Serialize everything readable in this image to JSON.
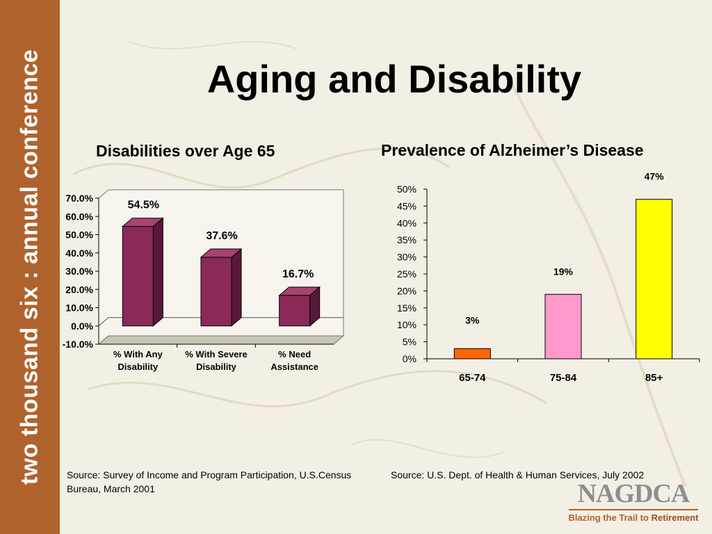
{
  "sidebar": {
    "text": "two thousand six : annual conference"
  },
  "title": "Aging and Disability",
  "chart_data": [
    {
      "type": "bar",
      "title": "Disabilities over Age 65",
      "categories": [
        [
          "% With Any",
          "Disability"
        ],
        [
          "% With Severe",
          "Disability"
        ],
        [
          "% Need",
          "Assistance"
        ]
      ],
      "values": [
        54.5,
        37.6,
        16.7
      ],
      "data_labels": [
        "54.5%",
        "37.6%",
        "16.7%"
      ],
      "yticks": [
        "70.0%",
        "60.0%",
        "50.0%",
        "40.0%",
        "30.0%",
        "20.0%",
        "10.0%",
        "0.0%",
        "-10.0%"
      ],
      "ylim": [
        -10,
        70
      ],
      "style": "3d",
      "bar_color": "#8b2a57",
      "bar_side_color": "#5a1838",
      "bar_top_color": "#a8436f",
      "grid": false,
      "legend": "none"
    },
    {
      "type": "bar",
      "title": "Prevalence of Alzheimer’s Disease",
      "categories": [
        "65-74",
        "75-84",
        "85+"
      ],
      "values": [
        3,
        19,
        47
      ],
      "data_labels": [
        "3%",
        "19%",
        "47%"
      ],
      "yticks": [
        "50%",
        "45%",
        "40%",
        "35%",
        "30%",
        "25%",
        "20%",
        "15%",
        "10%",
        "5%",
        "0%"
      ],
      "ylim": [
        0,
        50
      ],
      "colors": [
        "#ff6600",
        "#ff99cc",
        "#ffff00"
      ],
      "grid": false,
      "legend": "none"
    }
  ],
  "sources": {
    "left": "Source: Survey of Income and Program Participation, U.S.Census Bureau, March 2001",
    "right": "Source: U.S. Dept. of Health & Human Services, July 2002"
  },
  "logo": {
    "name": "NAGDCA",
    "tagline_pre": "Blazing the Trail to ",
    "tagline_hi": "Retirement"
  }
}
